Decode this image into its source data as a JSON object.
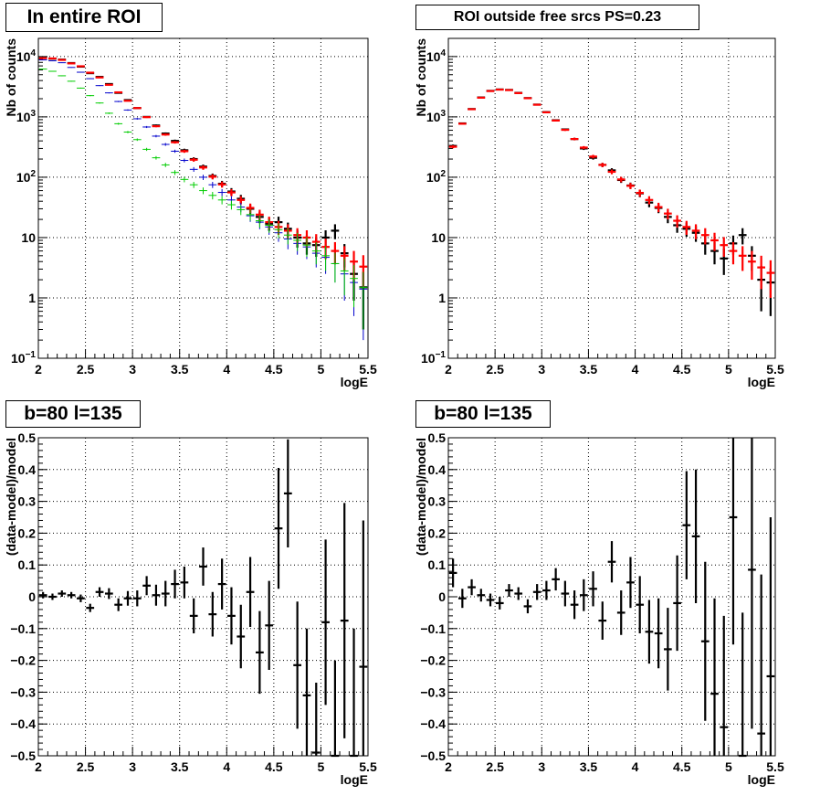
{
  "chart_data": [
    {
      "type": "scatter",
      "title": "In entire ROI",
      "xlabel": "logE",
      "ylabel": "Nb of counts",
      "xlim": [
        2,
        5.5
      ],
      "ylim": [
        0.1,
        20000
      ],
      "log_y": true,
      "grid": true,
      "x_ticks": [
        "2",
        "2.5",
        "3",
        "3.5",
        "4",
        "4.5",
        "5",
        "5.5"
      ],
      "y_ticks": [
        "10^-1",
        "1",
        "10",
        "10^2",
        "10^3",
        "10^4"
      ],
      "bin_width": 0.1,
      "series": [
        {
          "color": "#000000",
          "style": "error",
          "x": [
            2.05,
            2.15,
            2.25,
            2.35,
            2.45,
            2.55,
            2.65,
            2.75,
            2.85,
            2.95,
            3.05,
            3.15,
            3.25,
            3.35,
            3.45,
            3.55,
            3.65,
            3.75,
            3.85,
            3.95,
            4.05,
            4.15,
            4.25,
            4.35,
            4.45,
            4.55,
            4.65,
            4.75,
            4.85,
            4.95,
            5.05,
            5.15,
            5.25,
            5.35,
            5.45
          ],
          "y": [
            9500,
            9200,
            8900,
            7800,
            6800,
            5300,
            4600,
            3500,
            2500,
            1900,
            1400,
            1000,
            720,
            530,
            400,
            280,
            200,
            150,
            105,
            78,
            58,
            44,
            30,
            22,
            17,
            18,
            14,
            10,
            8,
            7.5,
            10,
            13,
            5.5,
            2.5,
            1.5
          ],
          "err": [
            97,
            96,
            94,
            88,
            82,
            73,
            68,
            59,
            50,
            44,
            37,
            32,
            27,
            23,
            20,
            17,
            14,
            12,
            10,
            9,
            8,
            7,
            5.5,
            4.7,
            4.1,
            4.2,
            3.7,
            3.2,
            2.8,
            2.7,
            3.2,
            3.6,
            2.3,
            1.6,
            1.2
          ]
        },
        {
          "color": "#ff0000",
          "style": "error",
          "x": [
            2.05,
            2.15,
            2.25,
            2.35,
            2.45,
            2.55,
            2.65,
            2.75,
            2.85,
            2.95,
            3.05,
            3.15,
            3.25,
            3.35,
            3.45,
            3.55,
            3.65,
            3.75,
            3.85,
            3.95,
            4.05,
            4.15,
            4.25,
            4.35,
            4.45,
            4.55,
            4.65,
            4.75,
            4.85,
            4.95,
            5.05,
            5.15,
            5.25,
            5.35,
            5.45
          ],
          "y": [
            9400,
            9300,
            8800,
            7700,
            6900,
            5400,
            4500,
            3400,
            2550,
            1850,
            1400,
            990,
            700,
            510,
            380,
            270,
            195,
            145,
            102,
            76,
            56,
            42,
            31,
            24,
            18,
            15,
            13,
            11,
            10,
            8.5,
            7,
            6,
            5,
            4,
            3.3
          ],
          "err": [
            97,
            96,
            94,
            88,
            83,
            73,
            67,
            58,
            50,
            43,
            37,
            31,
            26,
            23,
            19,
            16,
            14,
            12,
            10,
            8.7,
            7.5,
            6.5,
            5.6,
            4.9,
            4.2,
            3.9,
            3.6,
            3.3,
            3.2,
            2.9,
            2.6,
            2.4,
            2.2,
            2.0,
            1.8
          ]
        },
        {
          "color": "#0000cc",
          "style": "error",
          "x": [
            2.05,
            2.15,
            2.25,
            2.35,
            2.45,
            2.55,
            2.65,
            2.75,
            2.85,
            2.95,
            3.05,
            3.15,
            3.25,
            3.35,
            3.45,
            3.55,
            3.65,
            3.75,
            3.85,
            3.95,
            4.05,
            4.15,
            4.25,
            4.35,
            4.45,
            4.55,
            4.65,
            4.75,
            4.85,
            4.95,
            5.05,
            5.15,
            5.25,
            5.35,
            5.45
          ],
          "y": [
            8800,
            8500,
            7900,
            6600,
            5500,
            4300,
            3300,
            2500,
            1800,
            1300,
            930,
            680,
            480,
            350,
            270,
            190,
            135,
            100,
            75,
            56,
            42,
            32,
            23,
            18,
            15,
            12,
            9.5,
            8,
            7,
            5.5,
            4.7,
            3.7,
            2.5,
            1.8,
            1.4
          ],
          "err": [
            94,
            92,
            89,
            81,
            74,
            66,
            57,
            50,
            42,
            36,
            30,
            26,
            22,
            19,
            16,
            14,
            12,
            10,
            8.7,
            7.5,
            6.5,
            5.7,
            4.8,
            4.2,
            3.9,
            3.5,
            3.1,
            2.8,
            2.6,
            2.3,
            2.2,
            1.9,
            1.6,
            1.3,
            1.2
          ]
        },
        {
          "color": "#00cc00",
          "style": "error",
          "x": [
            2.05,
            2.15,
            2.25,
            2.35,
            2.45,
            2.55,
            2.65,
            2.75,
            2.85,
            2.95,
            3.05,
            3.15,
            3.25,
            3.35,
            3.45,
            3.55,
            3.65,
            3.75,
            3.85,
            3.95,
            4.05,
            4.15,
            4.25,
            4.35,
            4.45,
            4.55,
            4.65,
            4.75,
            4.85,
            4.95,
            5.05,
            5.15,
            5.25,
            5.35,
            5.45
          ],
          "y": [
            6200,
            5700,
            4800,
            3900,
            3000,
            2250,
            1700,
            1150,
            770,
            560,
            420,
            290,
            210,
            160,
            120,
            92,
            75,
            60,
            50,
            42,
            35,
            29,
            24,
            19,
            16,
            13.5,
            11,
            9,
            7.5,
            6,
            5,
            3.7,
            2.8,
            2.1,
            1.5
          ],
          "err": [
            79,
            75,
            69,
            62,
            55,
            47,
            41,
            34,
            28,
            24,
            20,
            17,
            14,
            13,
            11,
            9.6,
            8.7,
            7.7,
            7.1,
            6.5,
            5.9,
            5.4,
            4.9,
            4.4,
            4,
            3.7,
            3.3,
            3,
            2.7,
            2.4,
            2.2,
            1.9,
            1.7,
            1.4,
            1.2
          ]
        }
      ]
    },
    {
      "type": "scatter",
      "title": "ROI outside free srcs PS=0.23",
      "xlabel": "logE",
      "ylabel": "Nb of counts",
      "xlim": [
        2,
        5.5
      ],
      "ylim": [
        0.1,
        20000
      ],
      "log_y": true,
      "grid": true,
      "x_ticks": [
        "2",
        "2.5",
        "3",
        "3.5",
        "4",
        "4.5",
        "5",
        "5.5"
      ],
      "y_ticks": [
        "10^-1",
        "1",
        "10",
        "10^2",
        "10^3",
        "10^4"
      ],
      "bin_width": 0.1,
      "series": [
        {
          "color": "#000000",
          "style": "error",
          "x": [
            2.05,
            2.15,
            2.25,
            2.35,
            2.45,
            2.55,
            2.65,
            2.75,
            2.85,
            2.95,
            3.05,
            3.15,
            3.25,
            3.35,
            3.45,
            3.55,
            3.65,
            3.75,
            3.85,
            3.95,
            4.05,
            4.15,
            4.25,
            4.35,
            4.45,
            4.55,
            4.65,
            4.75,
            4.85,
            4.95,
            5.05,
            5.15,
            5.25,
            5.35,
            5.45
          ],
          "y": [
            330,
            780,
            1350,
            2100,
            2700,
            2850,
            2800,
            2500,
            2050,
            1600,
            1200,
            880,
            620,
            430,
            300,
            210,
            160,
            130,
            90,
            73,
            54,
            38,
            31,
            22,
            16,
            14,
            12,
            8,
            6,
            4.5,
            8,
            11,
            5,
            2,
            1.8
          ],
          "err": [
            18,
            28,
            37,
            46,
            52,
            53,
            53,
            50,
            45,
            40,
            35,
            30,
            25,
            21,
            17,
            14,
            13,
            11,
            9.5,
            8.5,
            7.3,
            6.2,
            5.6,
            4.7,
            4,
            3.7,
            3.5,
            2.8,
            2.4,
            2.1,
            2.8,
            3.3,
            2.2,
            1.4,
            1.3
          ]
        },
        {
          "color": "#ff0000",
          "style": "error",
          "x": [
            2.05,
            2.15,
            2.25,
            2.35,
            2.45,
            2.55,
            2.65,
            2.75,
            2.85,
            2.95,
            3.05,
            3.15,
            3.25,
            3.35,
            3.45,
            3.55,
            3.65,
            3.75,
            3.85,
            3.95,
            4.05,
            4.15,
            4.25,
            4.35,
            4.45,
            4.55,
            4.65,
            4.75,
            4.85,
            4.95,
            5.05,
            5.15,
            5.25,
            5.35,
            5.45
          ],
          "y": [
            320,
            770,
            1340,
            2080,
            2680,
            2830,
            2780,
            2480,
            2040,
            1590,
            1190,
            870,
            610,
            430,
            310,
            220,
            160,
            123,
            92,
            72,
            55,
            42,
            32,
            25,
            19,
            15,
            13,
            11,
            9,
            7.5,
            6,
            5,
            4,
            3.2,
            2.6
          ],
          "err": [
            18,
            28,
            37,
            46,
            52,
            53,
            53,
            50,
            45,
            40,
            35,
            30,
            25,
            21,
            18,
            15,
            13,
            11,
            9.6,
            8.5,
            7.4,
            6.5,
            5.7,
            5,
            4.4,
            3.9,
            3.6,
            3.3,
            3,
            2.7,
            2.4,
            2.2,
            2,
            1.8,
            1.6
          ]
        }
      ]
    },
    {
      "type": "scatter",
      "title": "b=80 l=135",
      "xlabel": "logE",
      "ylabel": "(data-model)/model",
      "xlim": [
        2,
        5.5
      ],
      "ylim": [
        -0.5,
        0.5
      ],
      "grid": true,
      "x_ticks": [
        "2",
        "2.5",
        "3",
        "3.5",
        "4",
        "4.5",
        "5",
        "5.5"
      ],
      "y_ticks": [
        "-0.5",
        "-0.4",
        "-0.3",
        "-0.2",
        "-0.1",
        "0",
        "0.1",
        "0.2",
        "0.3",
        "0.4",
        "0.5"
      ],
      "bin_width": 0.1,
      "series": [
        {
          "color": "#000000",
          "style": "error",
          "x": [
            2.05,
            2.15,
            2.25,
            2.35,
            2.45,
            2.55,
            2.65,
            2.75,
            2.85,
            2.95,
            3.05,
            3.15,
            3.25,
            3.35,
            3.45,
            3.55,
            3.65,
            3.75,
            3.85,
            3.95,
            4.05,
            4.15,
            4.25,
            4.35,
            4.45,
            4.55,
            4.65,
            4.75,
            4.85,
            4.95,
            5.05,
            5.15,
            5.25,
            5.35,
            5.45
          ],
          "y": [
            0.005,
            0,
            0.01,
            0.005,
            -0.005,
            -0.035,
            0.015,
            0.01,
            -0.025,
            -0.005,
            -0.005,
            0.035,
            0.005,
            0.01,
            0.04,
            0.045,
            -0.06,
            0.095,
            -0.055,
            0.04,
            -0.06,
            -0.125,
            0.015,
            -0.175,
            -0.09,
            0.215,
            0.325,
            -0.215,
            -0.31,
            -0.49,
            -0.08,
            -0.5,
            -0.075,
            -0.5,
            -0.22
          ],
          "err": [
            0.01,
            0.01,
            0.01,
            0.01,
            0.012,
            0.013,
            0.015,
            0.017,
            0.02,
            0.023,
            0.025,
            0.03,
            0.033,
            0.04,
            0.045,
            0.05,
            0.055,
            0.06,
            0.07,
            0.08,
            0.09,
            0.1,
            0.11,
            0.13,
            0.14,
            0.19,
            0.17,
            0.2,
            0.21,
            0.22,
            0.26,
            0.3,
            0.37,
            0.4,
            0.46
          ]
        }
      ]
    },
    {
      "type": "scatter",
      "title": "b=80 l=135",
      "xlabel": "logE",
      "ylabel": "(data-model)/model",
      "xlim": [
        2,
        5.5
      ],
      "ylim": [
        -0.5,
        0.5
      ],
      "grid": true,
      "x_ticks": [
        "2",
        "2.5",
        "3",
        "3.5",
        "4",
        "4.5",
        "5",
        "5.5"
      ],
      "y_ticks": [
        "-0.5",
        "-0.4",
        "-0.3",
        "-0.2",
        "-0.1",
        "0",
        "0.1",
        "0.2",
        "0.3",
        "0.4",
        "0.5"
      ],
      "bin_width": 0.1,
      "series": [
        {
          "color": "#000000",
          "style": "error",
          "x": [
            2.05,
            2.15,
            2.25,
            2.35,
            2.45,
            2.55,
            2.65,
            2.75,
            2.85,
            2.95,
            3.05,
            3.15,
            3.25,
            3.35,
            3.45,
            3.55,
            3.65,
            3.75,
            3.85,
            3.95,
            4.05,
            4.15,
            4.25,
            4.35,
            4.45,
            4.55,
            4.65,
            4.75,
            4.85,
            4.95,
            5.05,
            5.15,
            5.25,
            5.35,
            5.45
          ],
          "y": [
            0.075,
            -0.005,
            0.03,
            0.005,
            -0.01,
            -0.02,
            0.02,
            0.01,
            -0.03,
            0.015,
            0.02,
            0.055,
            0.01,
            -0.025,
            0.005,
            0.025,
            -0.075,
            0.11,
            -0.05,
            0.045,
            -0.025,
            -0.11,
            -0.115,
            -0.165,
            -0.02,
            0.225,
            0.19,
            -0.14,
            -0.305,
            -0.41,
            0.25,
            -0.5,
            0.085,
            -0.43,
            -0.25
          ],
          "err": [
            0.045,
            0.03,
            0.025,
            0.02,
            0.02,
            0.02,
            0.02,
            0.02,
            0.022,
            0.025,
            0.03,
            0.035,
            0.04,
            0.045,
            0.05,
            0.055,
            0.06,
            0.065,
            0.07,
            0.08,
            0.09,
            0.1,
            0.11,
            0.13,
            0.15,
            0.17,
            0.21,
            0.25,
            0.3,
            0.35,
            0.4,
            0.45,
            0.5,
            0.5,
            0.5
          ]
        }
      ]
    }
  ]
}
